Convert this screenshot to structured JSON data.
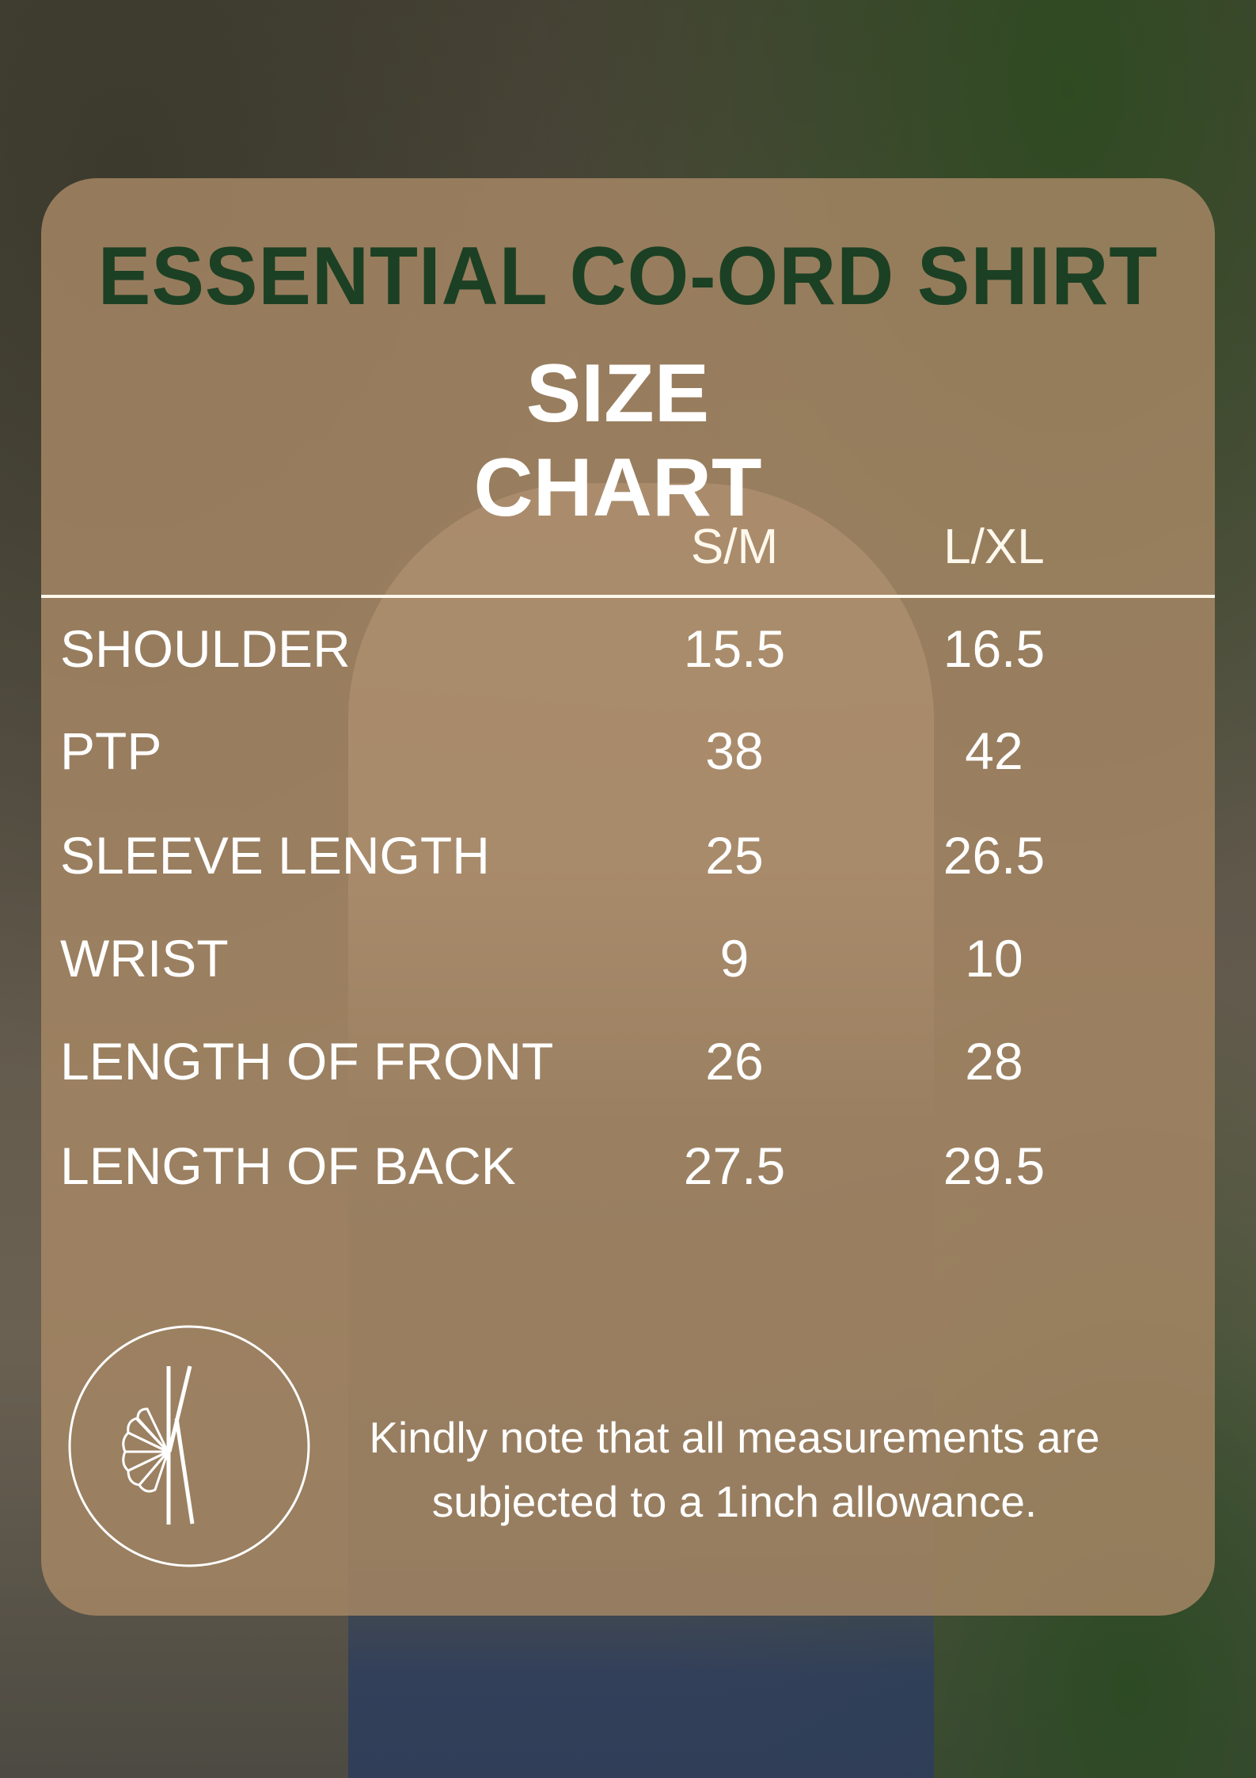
{
  "title": "ESSENTIAL CO-ORD SHIRT",
  "subtitle": "SIZE CHART",
  "columns": [
    "S/M",
    "L/XL"
  ],
  "rows": [
    {
      "label": "SHOULDER",
      "values": [
        "15.5",
        "16.5"
      ]
    },
    {
      "label": "PTP",
      "values": [
        "38",
        "42"
      ]
    },
    {
      "label": "SLEEVE LENGTH",
      "values": [
        "25",
        "26.5"
      ]
    },
    {
      "label": "WRIST",
      "values": [
        "9",
        "10"
      ]
    },
    {
      "label": "LENGTH OF FRONT",
      "values": [
        "26",
        "28"
      ]
    },
    {
      "label": "LENGTH OF BACK",
      "values": [
        "27.5",
        "29.5"
      ]
    }
  ],
  "note": {
    "line1": "Kindly note that all measurements are",
    "line2": "subjected to a 1inch allowance."
  },
  "logo": {
    "letter": "K",
    "icon": "k-shell-logo-icon"
  },
  "colors": {
    "title": "#1c4024",
    "card": "#a48664",
    "text": "#ffffff"
  }
}
